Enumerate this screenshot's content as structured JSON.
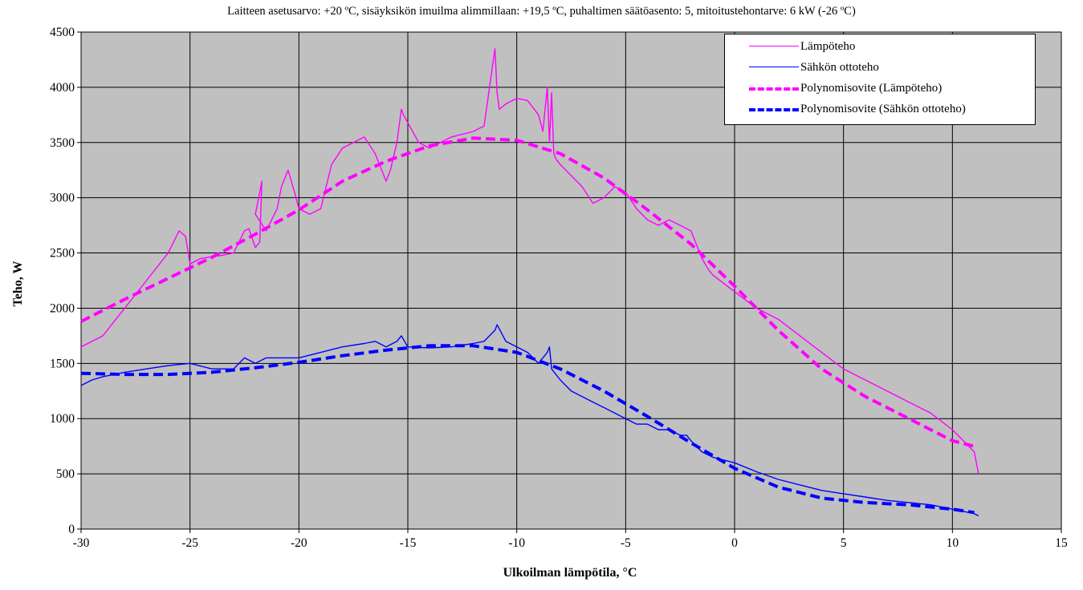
{
  "chart_data": {
    "type": "line",
    "title": "",
    "subtitle": "Laitteen asetusarvo: +20 ºC, sisäyksikön imuilma alimmillaan: +19,5 ºC, puhaltimen säätöasento: 5, mitoitustehontarve:  6 kW (-26 ºC)",
    "xlabel": "Ulkoilman lämpötila,  °C",
    "ylabel": "Teho, W",
    "xlim": [
      -30,
      15
    ],
    "ylim": [
      0,
      4500
    ],
    "xticks": [
      -30,
      -25,
      -20,
      -15,
      -10,
      -5,
      0,
      5,
      10,
      15
    ],
    "yticks": [
      0,
      500,
      1000,
      1500,
      2000,
      2500,
      3000,
      3500,
      4000,
      4500
    ],
    "grid": true,
    "plot_background": "#c0c0c0",
    "legend_position": "top-right",
    "series": [
      {
        "name": "Lämpöteho",
        "color": "#ff00ff",
        "style": "solid",
        "x": [
          -30,
          -29,
          -28,
          -27,
          -26,
          -25.5,
          -25.2,
          -25,
          -24.5,
          -23.5,
          -23,
          -22.5,
          -22.3,
          -22,
          -21.8,
          -21.7,
          -22,
          -21.5,
          -21,
          -20.8,
          -20.5,
          -20.2,
          -20,
          -19.5,
          -19,
          -18.5,
          -18,
          -17.5,
          -17,
          -16.9,
          -16.5,
          -16,
          -15.8,
          -15.5,
          -15.3,
          -15.2,
          -14.5,
          -14,
          -13,
          -12,
          -11.5,
          -11,
          -10.9,
          -10.8,
          -10.5,
          -10,
          -9.5,
          -9,
          -8.8,
          -8.6,
          -8.5,
          -8.4,
          -8.3,
          -8.2,
          -8,
          -7.5,
          -7,
          -6.5,
          -6,
          -5.5,
          -5,
          -4.5,
          -4,
          -3.5,
          -3,
          -2.5,
          -2,
          -1.8,
          -1.5,
          -1.2,
          -1,
          0,
          1,
          2,
          3,
          4,
          5,
          6,
          7,
          8,
          9,
          10,
          10.5,
          11,
          11.2
        ],
        "y": [
          1650,
          1750,
          2000,
          2250,
          2500,
          2700,
          2650,
          2400,
          2450,
          2480,
          2500,
          2700,
          2720,
          2550,
          2600,
          3150,
          2850,
          2700,
          2900,
          3100,
          3250,
          3050,
          2900,
          2850,
          2900,
          3300,
          3450,
          3500,
          3550,
          3520,
          3400,
          3150,
          3250,
          3500,
          3800,
          3750,
          3500,
          3450,
          3550,
          3600,
          3650,
          4350,
          3950,
          3800,
          3850,
          3900,
          3880,
          3750,
          3600,
          4000,
          3500,
          3950,
          3400,
          3350,
          3300,
          3200,
          3100,
          2950,
          3000,
          3100,
          3050,
          2900,
          2800,
          2750,
          2800,
          2750,
          2700,
          2600,
          2450,
          2350,
          2300,
          2150,
          2000,
          1900,
          1750,
          1600,
          1450,
          1350,
          1250,
          1150,
          1050,
          900,
          800,
          700,
          500
        ]
      },
      {
        "name": "Sähkön ottoteho",
        "color": "#0000ff",
        "style": "solid",
        "x": [
          -30,
          -29.5,
          -29,
          -28,
          -27,
          -26,
          -25,
          -24,
          -23,
          -22.5,
          -22,
          -21.5,
          -21,
          -20,
          -19,
          -18,
          -17,
          -16.5,
          -16,
          -15.5,
          -15.3,
          -15,
          -14,
          -13,
          -12,
          -11.5,
          -11,
          -10.9,
          -10.5,
          -10,
          -9.5,
          -9,
          -8.8,
          -8.6,
          -8.5,
          -8.4,
          -8,
          -7.5,
          -7,
          -6.5,
          -6,
          -5.5,
          -5,
          -4.5,
          -4,
          -3.5,
          -3,
          -2.5,
          -2.2,
          -2,
          -1.5,
          -1,
          0,
          1,
          2,
          3,
          4,
          5,
          6,
          7,
          8,
          9,
          10,
          11,
          11.2
        ],
        "y": [
          1300,
          1350,
          1380,
          1420,
          1450,
          1480,
          1500,
          1450,
          1450,
          1550,
          1500,
          1550,
          1550,
          1550,
          1600,
          1650,
          1680,
          1700,
          1650,
          1700,
          1750,
          1650,
          1640,
          1650,
          1680,
          1700,
          1800,
          1850,
          1700,
          1650,
          1600,
          1500,
          1550,
          1600,
          1650,
          1450,
          1350,
          1250,
          1200,
          1150,
          1100,
          1050,
          1000,
          950,
          950,
          900,
          900,
          850,
          850,
          800,
          700,
          650,
          600,
          520,
          450,
          400,
          350,
          320,
          290,
          260,
          240,
          220,
          180,
          140,
          120
        ]
      },
      {
        "name": "Polynomisovite (Lämpöteho)",
        "color": "#ff00ff",
        "style": "dashed",
        "x": [
          -30,
          -28,
          -26,
          -24,
          -22,
          -20,
          -18,
          -16,
          -14,
          -12,
          -10,
          -8,
          -6,
          -4,
          -2,
          0,
          2,
          4,
          6,
          8,
          10,
          11
        ],
        "y": [
          1880,
          2080,
          2270,
          2460,
          2670,
          2890,
          3150,
          3330,
          3470,
          3540,
          3520,
          3400,
          3180,
          2890,
          2580,
          2200,
          1800,
          1450,
          1200,
          1000,
          800,
          750
        ]
      },
      {
        "name": "Polynomisovite (Sähkön ottoteho)",
        "color": "#0000ff",
        "style": "dashed",
        "x": [
          -30,
          -28,
          -26,
          -24,
          -22,
          -20,
          -18,
          -16,
          -14,
          -12,
          -10,
          -8,
          -6,
          -4,
          -2,
          0,
          2,
          4,
          6,
          8,
          10,
          11
        ],
        "y": [
          1410,
          1400,
          1400,
          1420,
          1460,
          1510,
          1570,
          1620,
          1660,
          1660,
          1600,
          1450,
          1250,
          1020,
          780,
          550,
          380,
          280,
          240,
          220,
          180,
          150
        ]
      }
    ]
  }
}
